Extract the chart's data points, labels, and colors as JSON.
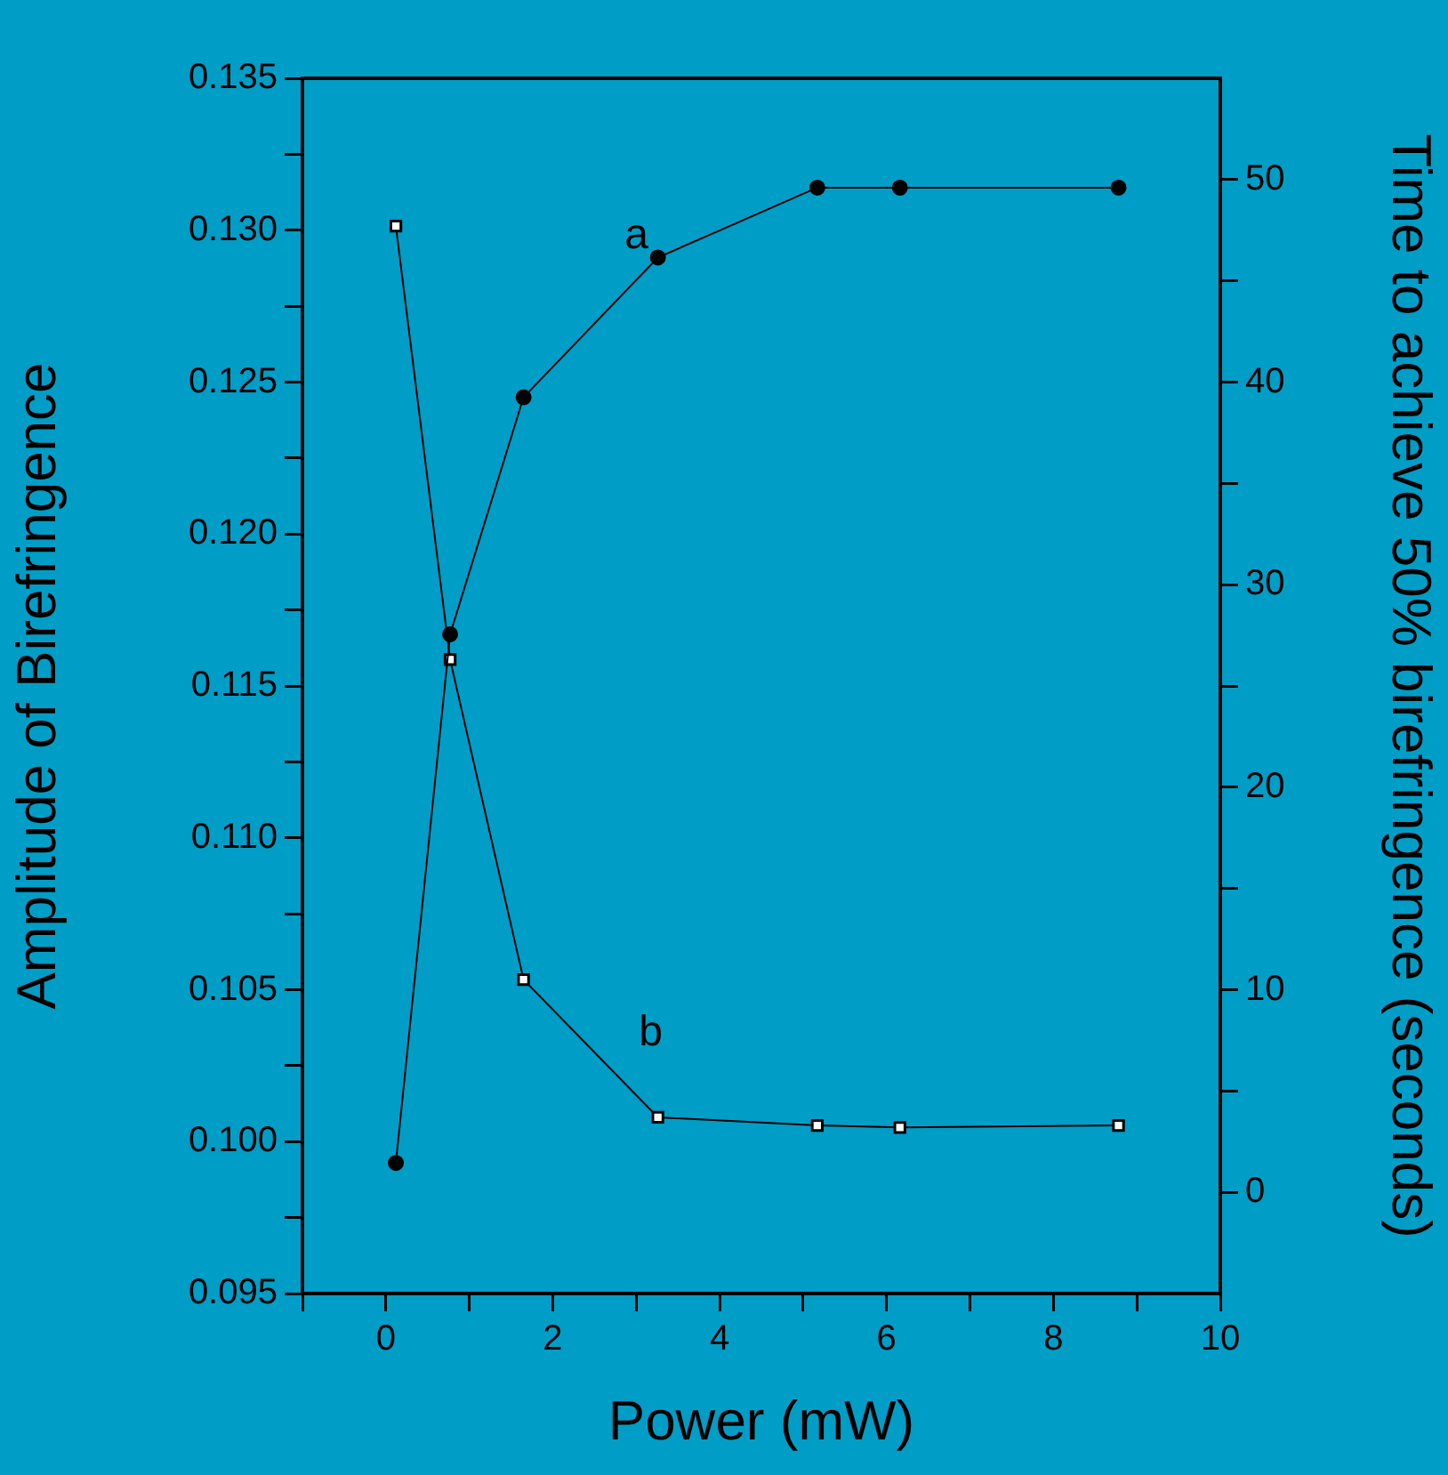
{
  "chart_data": {
    "type": "line",
    "xlabel": "Power (mW)",
    "ylabel": "Amplitude of Birefringence",
    "y2label": "Time to achieve 50% birefringence (seconds)",
    "x": [
      0.12,
      0.77,
      1.65,
      3.26,
      5.17,
      6.16,
      8.78
    ],
    "series": [
      {
        "name": "a",
        "color": "#000000",
        "marker": "circle",
        "values": [
          0.0993,
          0.1167,
          0.1245,
          0.1291,
          0.1314,
          0.1314,
          0.1314
        ]
      },
      {
        "name": "b",
        "color": "#000000",
        "marker": "square",
        "axis": "y2",
        "values": [
          47.7,
          26.3,
          10.5,
          3.7,
          3.3,
          3.2,
          3.3
        ]
      }
    ],
    "xlim": [
      -1,
      10
    ],
    "xticks": [
      {
        "value": -1,
        "label": null
      },
      0,
      {
        "value": 1,
        "label": null
      },
      2,
      {
        "value": 3,
        "label": null
      },
      4,
      {
        "value": 5,
        "label": null
      },
      6,
      {
        "value": 7,
        "label": null
      },
      8,
      {
        "value": 9,
        "label": null
      },
      10
    ],
    "ylim": [
      0.095,
      0.135
    ],
    "yticks": [
      {
        "value": 0.095,
        "label": "0.095"
      },
      {
        "value": 0.0975,
        "label": null
      },
      {
        "value": 0.1,
        "label": "0.100"
      },
      {
        "value": 0.1025,
        "label": null
      },
      {
        "value": 0.105,
        "label": "0.105"
      },
      {
        "value": 0.1075,
        "label": null
      },
      {
        "value": 0.11,
        "label": "0.110"
      },
      {
        "value": 0.1125,
        "label": null
      },
      {
        "value": 0.115,
        "label": "0.115"
      },
      {
        "value": 0.1175,
        "label": null
      },
      {
        "value": 0.12,
        "label": "0.120"
      },
      {
        "value": 0.1225,
        "label": null
      },
      {
        "value": 0.125,
        "label": "0.125"
      },
      {
        "value": 0.1275,
        "label": null
      },
      {
        "value": 0.13,
        "label": "0.130"
      },
      {
        "value": 0.1325,
        "label": null
      },
      {
        "value": 0.135,
        "label": "0.135"
      }
    ],
    "y2lim": [
      -5,
      55
    ],
    "y2ticks": [
      0,
      {
        "value": 5,
        "label": null
      },
      10,
      {
        "value": 15,
        "label": null
      },
      20,
      {
        "value": 25,
        "label": null
      },
      30,
      {
        "value": 35,
        "label": null
      },
      40,
      {
        "value": 45,
        "label": null
      },
      50
    ],
    "grid": false,
    "legend": false,
    "line_style": "solid"
  }
}
